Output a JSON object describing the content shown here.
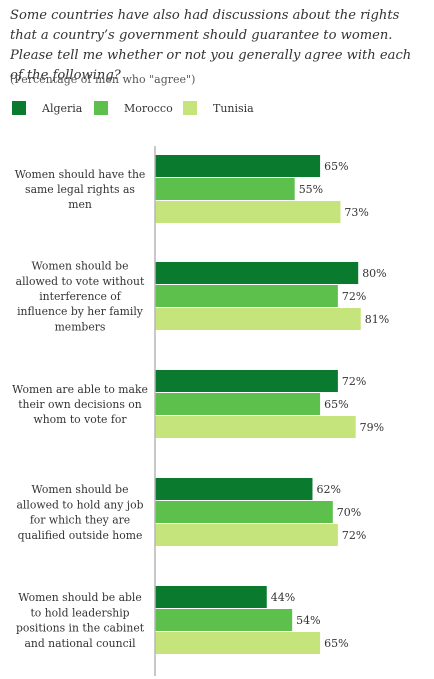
{
  "title": "Some countries have also had discussions about the rights that a country’s government should guarantee to women.  Please tell me whether or not you generally agree with each of the following?",
  "subtitle": "(Percentage of men who \"agree\")",
  "colors": {
    "Algeria": "#0a7a2f",
    "Morocco": "#5dbf4c",
    "Tunisia": "#c6e47c",
    "axis": "#b5b5b5"
  },
  "chart_data": {
    "type": "bar",
    "orientation": "horizontal",
    "title": "Some countries have also had discussions about the rights that a country’s government should guarantee to women.  Please tell me whether or not you generally agree with each of the following?",
    "subtitle": "(Percentage of men who \"agree\")",
    "legend": "top-left",
    "grid": false,
    "xlim": [
      0,
      100
    ],
    "categories": [
      [
        "Women should have the",
        "same legal rights as",
        "men"
      ],
      [
        "Women should be",
        "allowed to vote without",
        "interference of",
        "influence by her family",
        "members"
      ],
      [
        "Women are able to make",
        "their own decisions on",
        "whom to vote for"
      ],
      [
        "Women should be",
        "allowed to hold any job",
        "for which they are",
        "qualified outside home"
      ],
      [
        "Women should be able",
        "to hold leadership",
        "positions in the cabinet",
        "and national council"
      ]
    ],
    "series": [
      {
        "name": "Algeria",
        "values": [
          65,
          80,
          72,
          62,
          44
        ]
      },
      {
        "name": "Morocco",
        "values": [
          55,
          72,
          65,
          70,
          54
        ]
      },
      {
        "name": "Tunisia",
        "values": [
          73,
          81,
          79,
          72,
          65
        ]
      }
    ],
    "value_suffix": "%"
  }
}
